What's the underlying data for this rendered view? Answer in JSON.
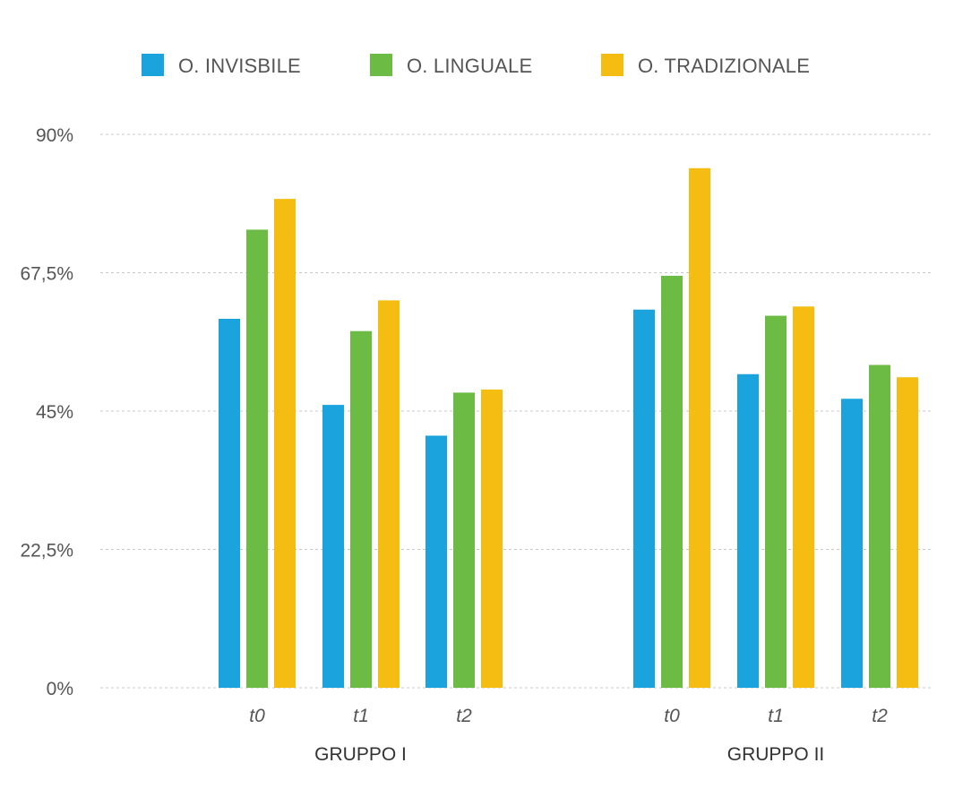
{
  "chart_data": {
    "type": "bar",
    "y_ticks": [
      "90%",
      "67,5%",
      "45%",
      "22,5%",
      "0%"
    ],
    "y_tick_values": [
      90,
      67.5,
      45,
      22.5,
      0
    ],
    "ylim": [
      0,
      90
    ],
    "grid": true,
    "legend_position": "top",
    "groups": [
      {
        "label": "GRUPPO I",
        "categories": [
          "t0",
          "t1",
          "t2"
        ]
      },
      {
        "label": "GRUPPO II",
        "categories": [
          "t0",
          "t1",
          "t2"
        ]
      }
    ],
    "series": [
      {
        "name": "O. INVISBILE",
        "color": "#1aa3dc",
        "values": [
          60,
          46,
          41,
          61.5,
          51,
          47
        ]
      },
      {
        "name": "O. LINGUALE",
        "color": "#6cbb45",
        "values": [
          74.5,
          58,
          48,
          67,
          60.5,
          52.5
        ]
      },
      {
        "name": "O. TRADIZIONALE",
        "color": "#f5bd11",
        "values": [
          79.5,
          63,
          48.5,
          84.5,
          62,
          50.5
        ]
      }
    ]
  }
}
